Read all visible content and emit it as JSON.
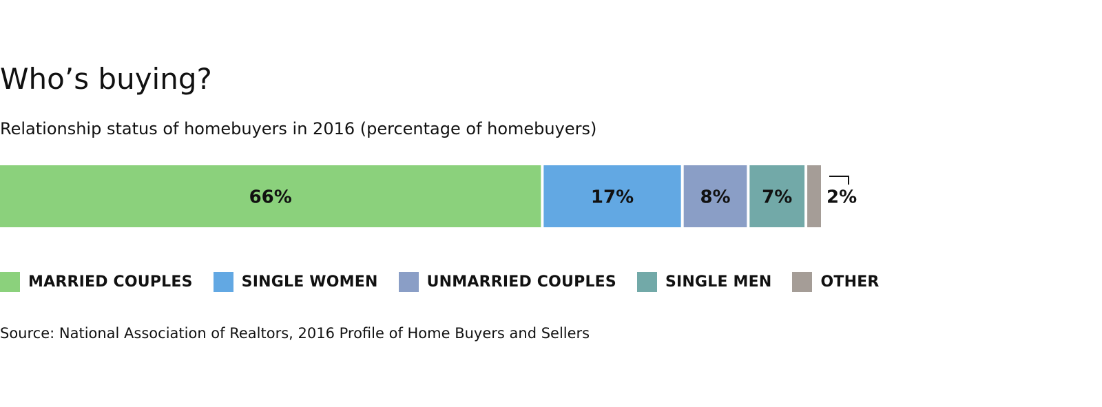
{
  "title": "Who’s buying?",
  "subtitle": "Relationship status of homebuyers in 2016 (percentage of homebuyers)",
  "source": "Source: National Association of Realtors, 2016 Profile of Home Buyers and Sellers",
  "chart_data": {
    "type": "bar",
    "orientation": "horizontal-stacked",
    "unit": "%",
    "categories": [
      "MARRIED COUPLES",
      "SINGLE WOMEN",
      "UNMARRIED COUPLES",
      "SINGLE MEN",
      "OTHER"
    ],
    "values": [
      66,
      17,
      8,
      7,
      2
    ],
    "labels": [
      "66%",
      "17%",
      "8%",
      "7%",
      "2%"
    ],
    "colors": [
      "#8bd17c",
      "#62a8e3",
      "#8a9ec6",
      "#72a9a8",
      "#a59d97"
    ],
    "legend_position": "bottom",
    "grid": false
  }
}
